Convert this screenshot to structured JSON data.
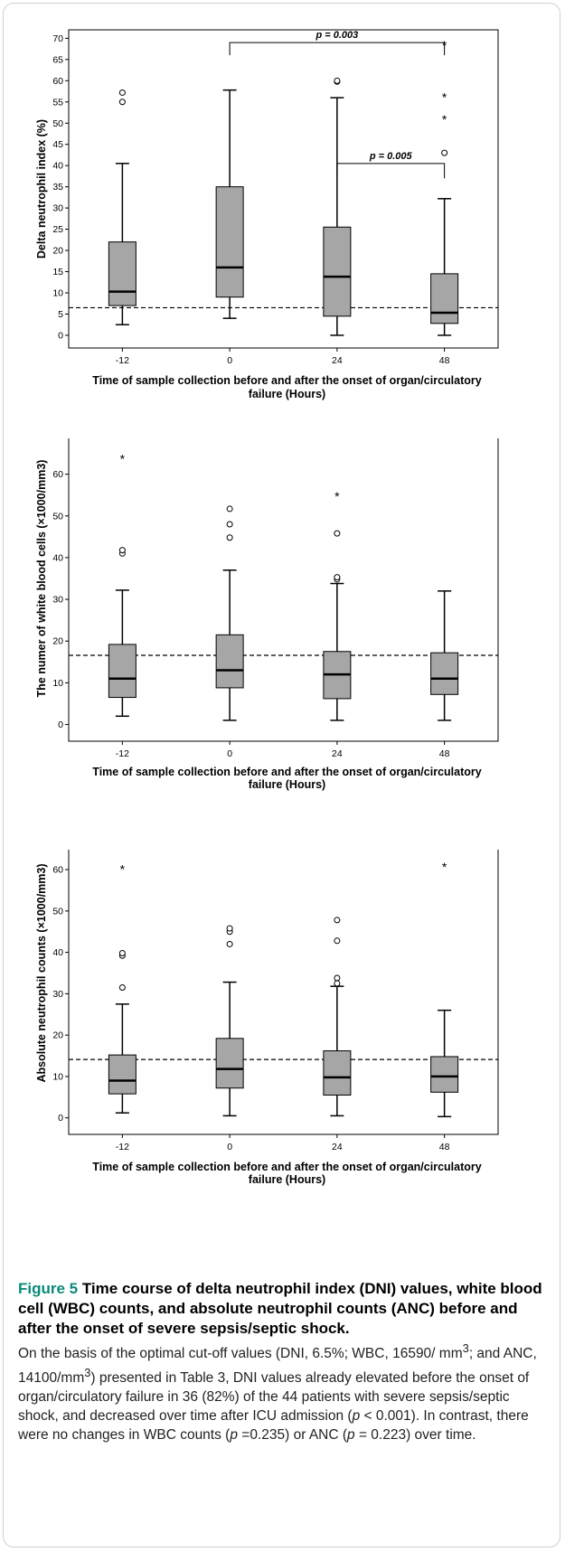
{
  "figure": {
    "label": "Figure 5",
    "title": "Time course of delta neutrophil index (DNI) values, white blood cell (WBC) counts, and absolute neutrophil counts (ANC) before and after the onset of severe sepsis/septic shock",
    "caption_segments": [
      "On the basis of the optimal cut-off values (DNI, 6.5%; WBC, 16590/ mm",
      "3",
      "; and ANC, 14100/mm",
      "3",
      ") presented in Table 3, DNI values already elevated before the onset of organ/circulatory failure in 36 (82%) of the 44 patients with severe sepsis/septic shock, and decreased over time after ICU admission (",
      "p",
      " < 0.001). In contrast, there were no changes in WBC counts (",
      "p",
      " =0.235) or ANC (",
      "p",
      " = 0.223) over time."
    ]
  },
  "chart_data": [
    {
      "type": "box",
      "id": "dni",
      "ylabel": "Delta neutrophil index (%)",
      "xlabel": "Time of sample collection before and after the onset of organ/circulatory failure (Hours)",
      "xlabel_lines": [
        "Time of sample collection before and after the onset of organ/circulatory",
        "failure (Hours)"
      ],
      "categories": [
        "-12",
        "0",
        "24",
        "48"
      ],
      "yticks": [
        0,
        5,
        10,
        15,
        20,
        25,
        30,
        35,
        40,
        45,
        50,
        55,
        60,
        65,
        70
      ],
      "ylim": [
        -3,
        72
      ],
      "cutoff": 6.5,
      "boxes": [
        {
          "min": 2.5,
          "q1": 7,
          "median": 10.3,
          "q3": 22,
          "max": 40.5,
          "outliers": [
            55,
            57.2
          ],
          "extremes": []
        },
        {
          "min": 4,
          "q1": 9,
          "median": 16,
          "q3": 35,
          "max": 57.8,
          "outliers": [],
          "extremes": []
        },
        {
          "min": 0,
          "q1": 4.5,
          "median": 13.8,
          "q3": 25.5,
          "max": 56,
          "outliers": [
            59.8,
            60
          ],
          "extremes": []
        },
        {
          "min": 0,
          "q1": 2.8,
          "median": 5.3,
          "q3": 14.5,
          "max": 32.2,
          "outliers": [
            43
          ],
          "extremes": [
            51,
            56.2,
            68.5
          ]
        }
      ],
      "annotations": [
        {
          "text": "p = 0.003",
          "from": 1,
          "to": 3,
          "y": 69,
          "drop_from": 66,
          "drop_to": 66
        },
        {
          "text": "p = 0.005",
          "from": 2,
          "to": 3,
          "y": 40.5,
          "drop_from": 37,
          "drop_to": 37
        }
      ]
    },
    {
      "type": "box",
      "id": "wbc",
      "ylabel": "The numer of white blood cells (×1000/mm3)",
      "xlabel": "Time of sample collection before and after the onset of organ/circulatory failure (Hours)",
      "xlabel_lines": [
        "Time of sample collection before and after the onset of organ/circulatory",
        "failure (Hours)"
      ],
      "categories": [
        "-12",
        "0",
        "24",
        "48"
      ],
      "yticks": [
        0,
        10,
        20,
        30,
        40,
        50,
        60,
        70
      ],
      "ylim": [
        -4,
        74
      ],
      "cutoff": 16.59,
      "boxes": [
        {
          "min": 2,
          "q1": 6.5,
          "median": 11,
          "q3": 19.2,
          "max": 32.2,
          "outliers": [
            41,
            41.8
          ],
          "extremes": [
            63.8
          ]
        },
        {
          "min": 1,
          "q1": 8.8,
          "median": 13,
          "q3": 21.5,
          "max": 37,
          "outliers": [
            44.8,
            48,
            51.7
          ],
          "extremes": []
        },
        {
          "min": 1,
          "q1": 6.2,
          "median": 12,
          "q3": 17.5,
          "max": 33.8,
          "outliers": [
            34.8,
            35.3,
            45.8
          ],
          "extremes": [
            54.8
          ]
        },
        {
          "min": 1,
          "q1": 7.2,
          "median": 11,
          "q3": 17.2,
          "max": 32,
          "outliers": [],
          "extremes": []
        }
      ],
      "annotations": []
    },
    {
      "type": "box",
      "id": "anc",
      "ylabel": "Absolute neutrophil counts (×1000/mm3)",
      "xlabel": "Time of sample collection before and after the onset of organ/circulatory failure (Hours)",
      "xlabel_lines": [
        "Time of sample collection before and after the onset of organ/circulatory",
        "failure (Hours)"
      ],
      "categories": [
        "-12",
        "0",
        "24",
        "48"
      ],
      "yticks": [
        0,
        10,
        20,
        30,
        40,
        50,
        60,
        70
      ],
      "ylim": [
        -4,
        74
      ],
      "cutoff": 14.1,
      "boxes": [
        {
          "min": 1.2,
          "q1": 5.8,
          "median": 9,
          "q3": 15.2,
          "max": 27.5,
          "outliers": [
            31.5,
            39.2,
            39.8
          ],
          "extremes": [
            60.2
          ]
        },
        {
          "min": 0.5,
          "q1": 7.2,
          "median": 11.8,
          "q3": 19.2,
          "max": 32.8,
          "outliers": [
            42,
            45,
            45.8
          ],
          "extremes": []
        },
        {
          "min": 0.5,
          "q1": 5.5,
          "median": 9.8,
          "q3": 16.2,
          "max": 31.8,
          "outliers": [
            32.5,
            33.8,
            42.8,
            47.8
          ],
          "extremes": []
        },
        {
          "min": 0.3,
          "q1": 6.2,
          "median": 10,
          "q3": 14.8,
          "max": 26,
          "outliers": [],
          "extremes": [
            60.8
          ]
        }
      ],
      "annotations": []
    }
  ]
}
